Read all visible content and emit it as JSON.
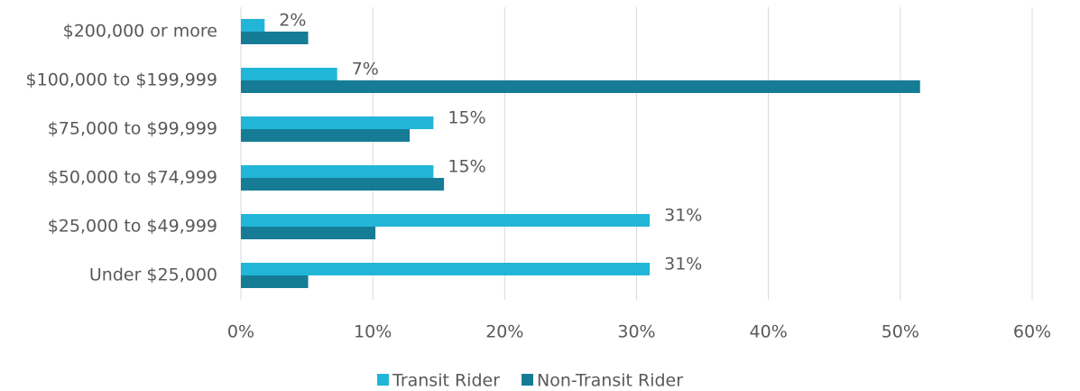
{
  "chart_data": {
    "type": "hbar",
    "categories": [
      "$200,000 or more",
      "$100,000 to $199,999",
      "$75,000 to $99,999",
      "$50,000 to $74,999",
      "$25,000 to $49,999",
      "Under $25,000"
    ],
    "series": [
      {
        "name": "Transit Rider",
        "color": "#21b6d8",
        "values": [
          1.8,
          7.3,
          14.6,
          14.6,
          31,
          31
        ],
        "value_labels": [
          "2%",
          "7%",
          "15%",
          "15%",
          "31%",
          "31%"
        ]
      },
      {
        "name": "Non-Transit Rider",
        "color": "#167c96",
        "values": [
          5.1,
          51.5,
          12.8,
          15.4,
          10.2,
          5.1
        ]
      }
    ],
    "xlim": [
      0,
      60
    ],
    "xticks": [
      {
        "value": 0,
        "label": "0%"
      },
      {
        "value": 10,
        "label": "10%"
      },
      {
        "value": 20,
        "label": "20%"
      },
      {
        "value": 30,
        "label": "30%"
      },
      {
        "value": 40,
        "label": "40%"
      },
      {
        "value": 50,
        "label": "50%"
      },
      {
        "value": 60,
        "label": "60%"
      }
    ],
    "grid": true,
    "legend": "bottom"
  }
}
